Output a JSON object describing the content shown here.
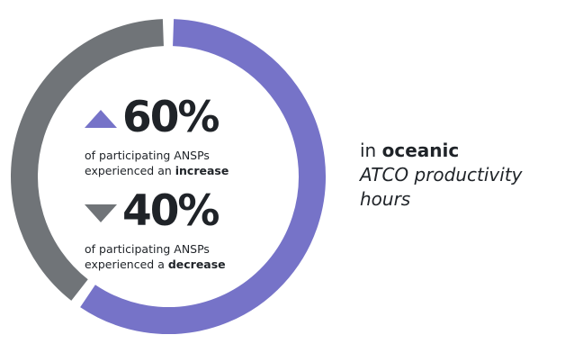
{
  "chart_data": {
    "type": "pie",
    "style": "donut",
    "categories": [
      "increase",
      "decrease"
    ],
    "values": [
      60,
      40
    ],
    "colors": [
      "#7673c8",
      "#707478"
    ]
  },
  "stats": [
    {
      "value": "60%",
      "arrow": "triangle-up-icon",
      "desc_prefix": "of participating ANSPs",
      "desc_line2": "experienced an ",
      "desc_emphasis": "increase"
    },
    {
      "value": "40%",
      "arrow": "triangle-down-icon",
      "desc_prefix": "of participating ANSPs",
      "desc_line2": "experienced a ",
      "desc_emphasis": "decrease"
    }
  ],
  "caption": {
    "prefix": "in ",
    "emphasis": "oceanic",
    "line2": "ATCO productivity",
    "line3": "hours"
  }
}
